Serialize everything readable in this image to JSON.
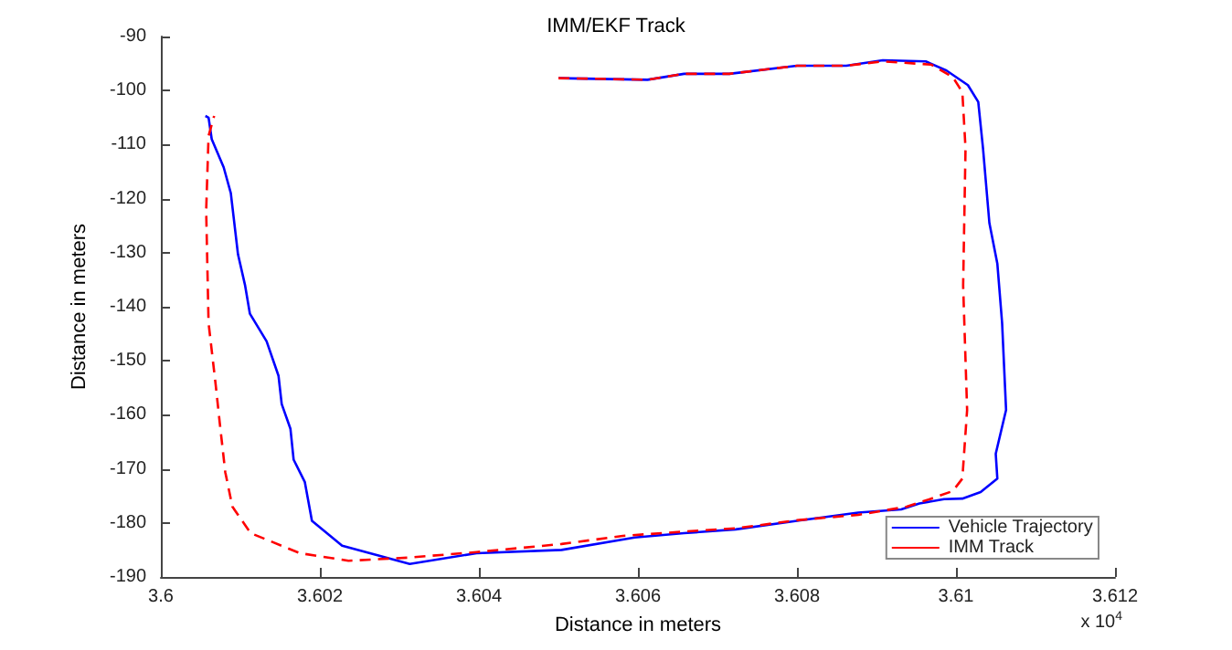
{
  "chart_data": {
    "type": "line",
    "title": "IMM/EKF Track",
    "xlabel": "Distance in meters",
    "ylabel": "Distance in meters",
    "annotations": [
      "x 10$^{4}$"
    ],
    "xlim": [
      3.6,
      3.612
    ],
    "xticks": [
      3.6,
      3.602,
      3.604,
      3.606,
      3.608,
      3.61,
      3.612
    ],
    "ylim": [
      -190,
      -90
    ],
    "yticks": [
      -190,
      -180,
      -170,
      -160,
      -150,
      -140,
      -130,
      -120,
      -110,
      -100,
      -90
    ],
    "grid": false,
    "legend": "bottom right",
    "marker": "none",
    "series": [
      {
        "name": "Vehicle Trajectory",
        "color": "#0000ff",
        "line_style": "solid",
        "x": [
          3.605,
          3.60612,
          3.60658,
          3.60715,
          3.608,
          3.60862,
          3.60908,
          3.60962,
          3.60988,
          3.61015,
          3.61028,
          3.61034,
          3.61042,
          3.61052,
          3.61058,
          3.61063,
          3.6105,
          3.61052,
          3.61031,
          3.61008,
          3.60985,
          3.60954,
          3.60931,
          3.60877,
          3.608,
          3.60723,
          3.60658,
          3.60596,
          3.60504,
          3.60397,
          3.60313,
          3.60228,
          3.6019,
          3.60181,
          3.60167,
          3.60163,
          3.60152,
          3.60148,
          3.60133,
          3.60112,
          3.60106,
          3.60097,
          3.60088,
          3.60079,
          3.60064,
          3.6006,
          3.60056
        ],
        "values": [
          -97.7,
          -98,
          -96.9,
          -96.9,
          -95.4,
          -95.4,
          -94.4,
          -94.6,
          -96.3,
          -99,
          -102.1,
          -110.7,
          -124.5,
          -132,
          -143,
          -159.1,
          -167.2,
          -171.8,
          -174.3,
          -175.5,
          -175.6,
          -176.4,
          -177.5,
          -178.1,
          -179.6,
          -181.2,
          -181.9,
          -182.7,
          -185,
          -185.6,
          -187.6,
          -184.2,
          -179.6,
          -172.4,
          -168.3,
          -162.6,
          -158,
          -152.8,
          -146.4,
          -141.3,
          -136.1,
          -130.3,
          -119,
          -114.2,
          -109,
          -105,
          -104.7
        ]
      },
      {
        "name": "IMM Track",
        "color": "#ff0000",
        "line_style": "dashed",
        "x": [
          3.605,
          3.60612,
          3.60658,
          3.60715,
          3.608,
          3.60862,
          3.60908,
          3.60969,
          3.60996,
          3.61008,
          3.61012,
          3.61009,
          3.61014,
          3.61008,
          3.60996,
          3.60969,
          3.60938,
          3.60877,
          3.608,
          3.60723,
          3.60658,
          3.60581,
          3.60504,
          3.60397,
          3.60313,
          3.60236,
          3.60175,
          3.60113,
          3.6009,
          3.60081,
          3.60074,
          3.60069,
          3.6006,
          3.60057,
          3.6006,
          3.60067
        ],
        "values": [
          -97.7,
          -98,
          -96.9,
          -96.9,
          -95.4,
          -95.4,
          -94.6,
          -95.2,
          -97.5,
          -100.3,
          -110.7,
          -136.1,
          -159.1,
          -171.8,
          -174.1,
          -175.5,
          -177,
          -178.5,
          -179.5,
          -181,
          -181.6,
          -182.4,
          -183.9,
          -185.4,
          -186.4,
          -187,
          -185.6,
          -181.9,
          -177,
          -170.6,
          -161.4,
          -154.5,
          -143,
          -122.2,
          -108.4,
          -104.7
        ]
      }
    ]
  }
}
